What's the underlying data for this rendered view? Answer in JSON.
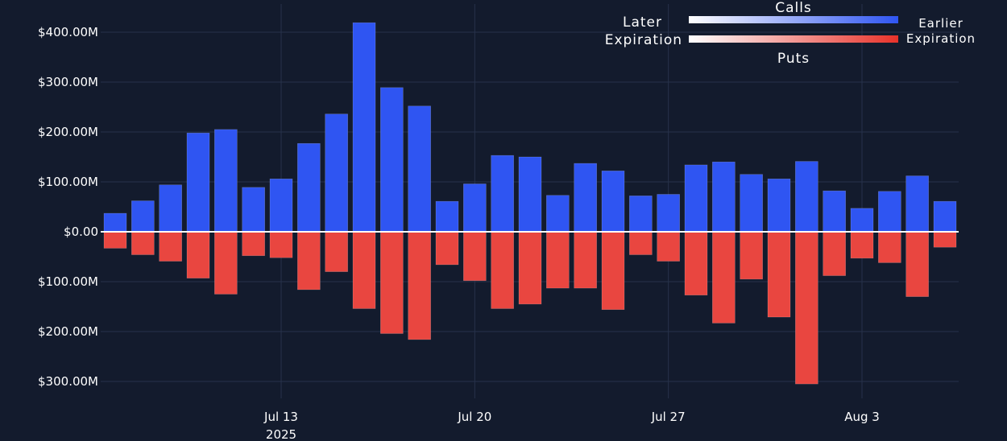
{
  "chart_data": {
    "type": "bar",
    "stacked_diverging": true,
    "x_axis": {
      "tick_labels": [
        "Jul 13",
        "Jul 20",
        "Jul 27",
        "Aug 3"
      ],
      "tick_dates": [
        "2025-07-13",
        "2025-07-20",
        "2025-07-27",
        "2025-08-03"
      ],
      "year_label": "2025"
    },
    "y_axis": {
      "range": [
        -340,
        430
      ],
      "unit": "M",
      "tick_values": [
        400,
        300,
        200,
        100,
        0,
        -100,
        -200,
        -300
      ],
      "tick_labels": [
        "$400.00M",
        "$300.00M",
        "$200.00M",
        "$100.00M",
        "$0.00",
        "$100.00M",
        "$200.00M",
        "$300.00M"
      ],
      "grid": true
    },
    "dates": [
      "2025-07-07",
      "2025-07-08",
      "2025-07-09",
      "2025-07-10",
      "2025-07-11",
      "2025-07-12",
      "2025-07-13",
      "2025-07-14",
      "2025-07-15",
      "2025-07-16",
      "2025-07-17",
      "2025-07-18",
      "2025-07-19",
      "2025-07-20",
      "2025-07-21",
      "2025-07-22",
      "2025-07-23",
      "2025-07-24",
      "2025-07-25",
      "2025-07-26",
      "2025-07-27",
      "2025-07-28",
      "2025-07-29",
      "2025-07-30",
      "2025-07-31",
      "2025-08-01",
      "2025-08-02",
      "2025-08-03",
      "2025-08-04",
      "2025-08-05",
      "2025-08-06"
    ],
    "series": [
      {
        "name": "Calls",
        "color": "#2f55f2",
        "values": [
          37,
          62,
          94,
          198,
          205,
          89,
          106,
          177,
          236,
          419,
          289,
          252,
          61,
          96,
          153,
          150,
          73,
          137,
          122,
          72,
          75,
          134,
          140,
          115,
          106,
          141,
          82,
          47,
          81,
          112,
          61
        ]
      },
      {
        "name": "Puts",
        "color": "#e94640",
        "values": [
          -33,
          -46,
          -59,
          -93,
          -125,
          -48,
          -52,
          -116,
          -80,
          -154,
          -204,
          -216,
          -66,
          -98,
          -154,
          -145,
          -113,
          -113,
          -156,
          -46,
          -59,
          -127,
          -183,
          -95,
          -171,
          -305,
          -88,
          -53,
          -62,
          -130,
          -31
        ]
      }
    ],
    "legend": {
      "placement": "top-right",
      "calls_label": "Calls",
      "puts_label": "Puts",
      "left_label_line1": "Later",
      "left_label_line2": "Expiration",
      "right_label_line1": "Earlier",
      "right_label_line2": "Expiration",
      "calls_gradient": [
        "#ffffff",
        "#2f55f2"
      ],
      "puts_gradient": [
        "#ffffff",
        "#e8322a"
      ]
    },
    "colors": {
      "background": "#131b2d",
      "grid": "#27324a",
      "zero_line": "#ffffff"
    }
  }
}
